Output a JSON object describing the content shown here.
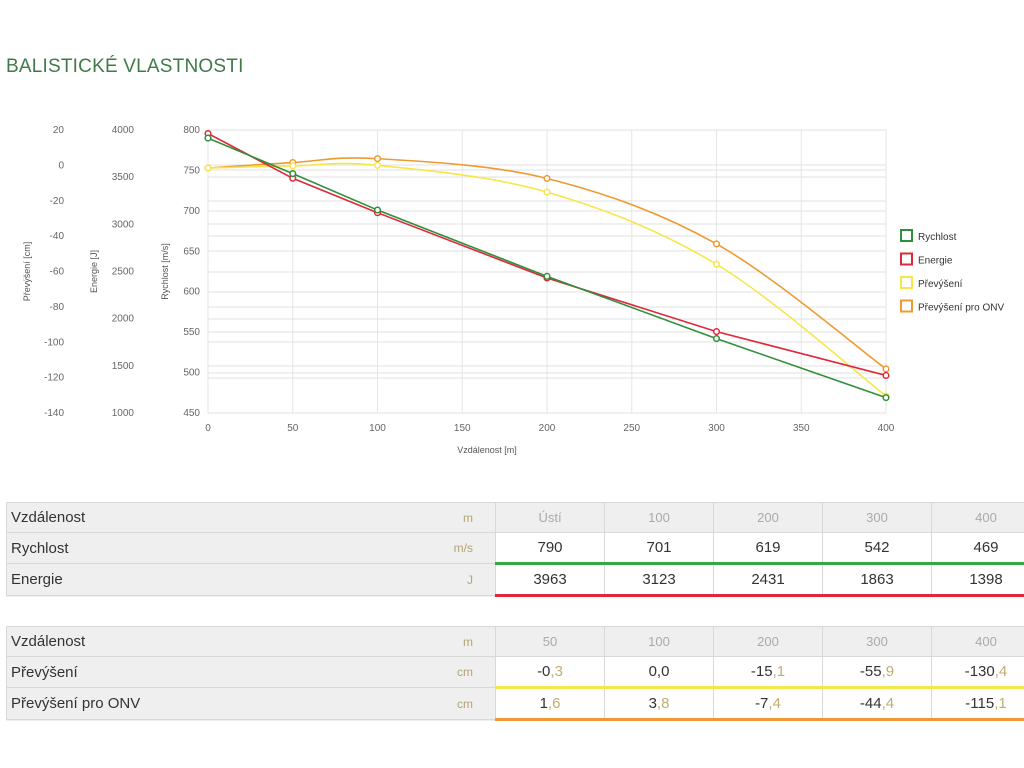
{
  "page": {
    "title": "BALISTICKÉ VLASTNOSTI"
  },
  "chart_data": {
    "type": "line",
    "xlabel": "Vzdálenost [m]",
    "xlim": [
      0,
      400
    ],
    "x_ticks": [
      0,
      50,
      100,
      150,
      200,
      250,
      300,
      350,
      400
    ],
    "axes": [
      {
        "id": "prevyseni",
        "label": "Převýšení [cm]",
        "range": [
          -140,
          20
        ],
        "ticks": [
          20,
          0,
          -20,
          -40,
          -60,
          -80,
          -100,
          -120,
          -140
        ]
      },
      {
        "id": "energie",
        "label": "Energie [J]",
        "range": [
          1000,
          4000
        ],
        "ticks": [
          4000,
          3500,
          3000,
          2500,
          2000,
          1500,
          1000
        ]
      },
      {
        "id": "rychlost",
        "label": "Rychlost [m/s]",
        "range": [
          450,
          800
        ],
        "ticks": [
          800,
          750,
          700,
          650,
          600,
          550,
          500,
          450
        ]
      }
    ],
    "series": [
      {
        "name": "Rychlost",
        "axis": "rychlost",
        "color": "#2f8f3a",
        "smooth": false,
        "x": [
          0,
          50,
          100,
          200,
          300,
          400
        ],
        "y": [
          790,
          746,
          701,
          619,
          542,
          469
        ]
      },
      {
        "name": "Energie",
        "axis": "energie",
        "color": "#e0283c",
        "smooth": false,
        "x": [
          0,
          50,
          100,
          200,
          300,
          400
        ],
        "y": [
          3963,
          3488,
          3123,
          2431,
          1863,
          1398
        ]
      },
      {
        "name": "Převýšení",
        "axis": "prevyseni",
        "color": "#f7e64a",
        "smooth": true,
        "x": [
          0,
          50,
          100,
          200,
          300,
          400
        ],
        "y": [
          -1.5,
          -0.3,
          0.0,
          -15.1,
          -55.9,
          -130.4
        ]
      },
      {
        "name": "Převýšení pro ONV",
        "axis": "prevyseni",
        "color": "#ef9a30",
        "smooth": true,
        "x": [
          0,
          50,
          100,
          200,
          300,
          400
        ],
        "y": [
          -1.5,
          1.6,
          3.8,
          -7.4,
          -44.4,
          -115.1
        ]
      }
    ],
    "legend_position": "right",
    "grid": true
  },
  "table1": {
    "header": {
      "label": "Vzdálenost",
      "unit": "m",
      "values": [
        "Ústí",
        "100",
        "200",
        "300",
        "400"
      ]
    },
    "rows": [
      {
        "label": "Rychlost",
        "unit": "m/s",
        "values": [
          "790",
          "701",
          "619",
          "542",
          "469"
        ]
      },
      {
        "label": "Energie",
        "unit": "J",
        "values": [
          "3963",
          "3123",
          "2431",
          "1863",
          "1398"
        ]
      }
    ]
  },
  "table2": {
    "header": {
      "label": "Vzdálenost",
      "unit": "m",
      "values": [
        "50",
        "100",
        "200",
        "300",
        "400"
      ]
    },
    "rows": [
      {
        "label": "Převýšení",
        "unit": "cm",
        "int": [
          "-0",
          "0",
          "-15",
          "-55",
          "-130"
        ],
        "frac": [
          ",3",
          ",0",
          ",1",
          ",9",
          ",4"
        ]
      },
      {
        "label": "Převýšení pro ONV",
        "unit": "cm",
        "int": [
          "1",
          "3",
          "-7",
          "-44",
          "-115"
        ],
        "frac": [
          ",6",
          ",8",
          ",4",
          ",4",
          ",1"
        ]
      }
    ]
  }
}
